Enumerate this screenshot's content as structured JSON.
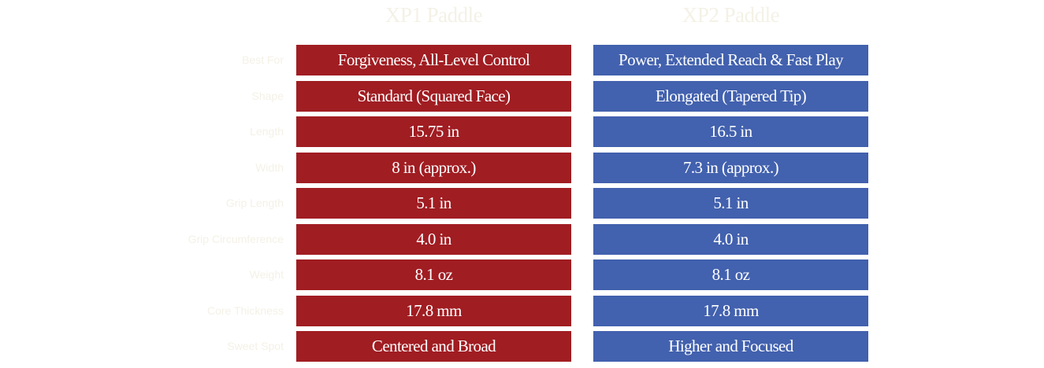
{
  "colors": {
    "xp1_accent": "#a01d22",
    "xp2_accent": "#4261ae",
    "background": "#ffffff",
    "faint_text": "#f4f1e6"
  },
  "headers": {
    "xp1": "XP1 Paddle",
    "xp2": "XP2 Paddle"
  },
  "rows": [
    {
      "label": "Best For",
      "xp1": "Forgiveness, All-Level Control",
      "xp2": "Power, Extended Reach & Fast Play"
    },
    {
      "label": "Shape",
      "xp1": "Standard (Squared Face)",
      "xp2": "Elongated (Tapered Tip)"
    },
    {
      "label": "Length",
      "xp1": "15.75 in",
      "xp2": "16.5 in"
    },
    {
      "label": "Width",
      "xp1": "8 in (approx.)",
      "xp2": "7.3 in (approx.)"
    },
    {
      "label": "Grip Length",
      "xp1": "5.1 in",
      "xp2": "5.1 in"
    },
    {
      "label": "Grip Circumference",
      "xp1": "4.0 in",
      "xp2": "4.0 in"
    },
    {
      "label": "Weight",
      "xp1": "8.1 oz",
      "xp2": "8.1 oz"
    },
    {
      "label": "Core Thickness",
      "xp1": "17.8 mm",
      "xp2": "17.8 mm"
    },
    {
      "label": "Sweet Spot",
      "xp1": "Centered and Broad",
      "xp2": "Higher and Focused"
    }
  ]
}
